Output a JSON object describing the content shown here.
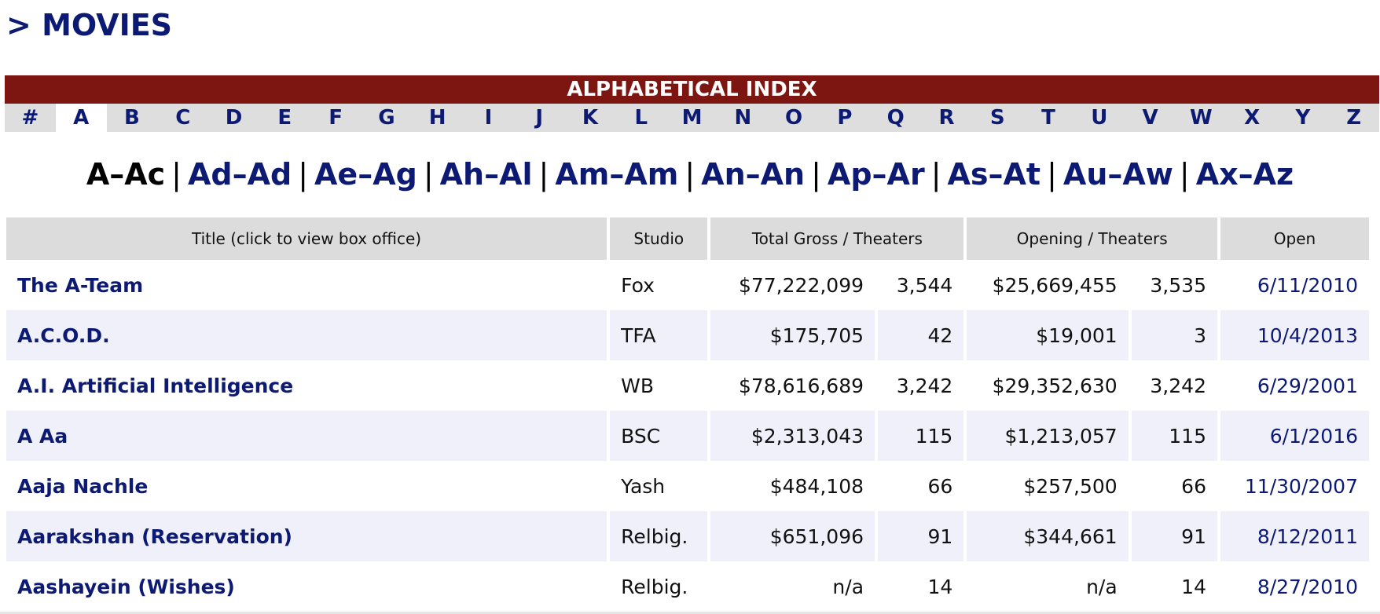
{
  "page": {
    "title": "> MOVIES"
  },
  "index": {
    "header": "ALPHABETICAL INDEX",
    "letters": [
      "#",
      "A",
      "B",
      "C",
      "D",
      "E",
      "F",
      "G",
      "H",
      "I",
      "J",
      "K",
      "L",
      "M",
      "N",
      "O",
      "P",
      "Q",
      "R",
      "S",
      "T",
      "U",
      "V",
      "W",
      "X",
      "Y",
      "Z"
    ],
    "active_letter": "A"
  },
  "subranges": {
    "items": [
      "A–Ac",
      "Ad–Ad",
      "Ae–Ag",
      "Ah–Al",
      "Am–Am",
      "An–An",
      "Ap–Ar",
      "As–At",
      "Au–Aw",
      "Ax–Az"
    ],
    "separator": "|",
    "active": "A–Ac"
  },
  "table": {
    "headers": {
      "title": "Title (click to view box office)",
      "studio": "Studio",
      "total": "Total Gross / Theaters",
      "opening": "Opening / Theaters",
      "open": "Open"
    },
    "rows": [
      {
        "title": "The A-Team",
        "studio": "Fox",
        "gross": "$77,222,099",
        "theaters": "3,544",
        "opening": "$25,669,455",
        "opening_theaters": "3,535",
        "open": "6/11/2010"
      },
      {
        "title": "A.C.O.D.",
        "studio": "TFA",
        "gross": "$175,705",
        "theaters": "42",
        "opening": "$19,001",
        "opening_theaters": "3",
        "open": "10/4/2013"
      },
      {
        "title": "A.I. Artificial Intelligence",
        "studio": "WB",
        "gross": "$78,616,689",
        "theaters": "3,242",
        "opening": "$29,352,630",
        "opening_theaters": "3,242",
        "open": "6/29/2001"
      },
      {
        "title": "A Aa",
        "studio": "BSC",
        "gross": "$2,313,043",
        "theaters": "115",
        "opening": "$1,213,057",
        "opening_theaters": "115",
        "open": "6/1/2016"
      },
      {
        "title": "Aaja Nachle",
        "studio": "Yash",
        "gross": "$484,108",
        "theaters": "66",
        "opening": "$257,500",
        "opening_theaters": "66",
        "open": "11/30/2007"
      },
      {
        "title": "Aarakshan (Reservation)",
        "studio": "Relbig.",
        "gross": "$651,096",
        "theaters": "91",
        "opening": "$344,661",
        "opening_theaters": "91",
        "open": "8/12/2011"
      },
      {
        "title": "Aashayein (Wishes)",
        "studio": "Relbig.",
        "gross": "n/a",
        "theaters": "14",
        "opening": "n/a",
        "opening_theaters": "14",
        "open": "8/27/2010"
      }
    ]
  },
  "colors": {
    "link": "#0d1a73",
    "header_bar": "#7d1510",
    "tab_bg": "#dedede",
    "row_alt": "#f0f0fb"
  }
}
